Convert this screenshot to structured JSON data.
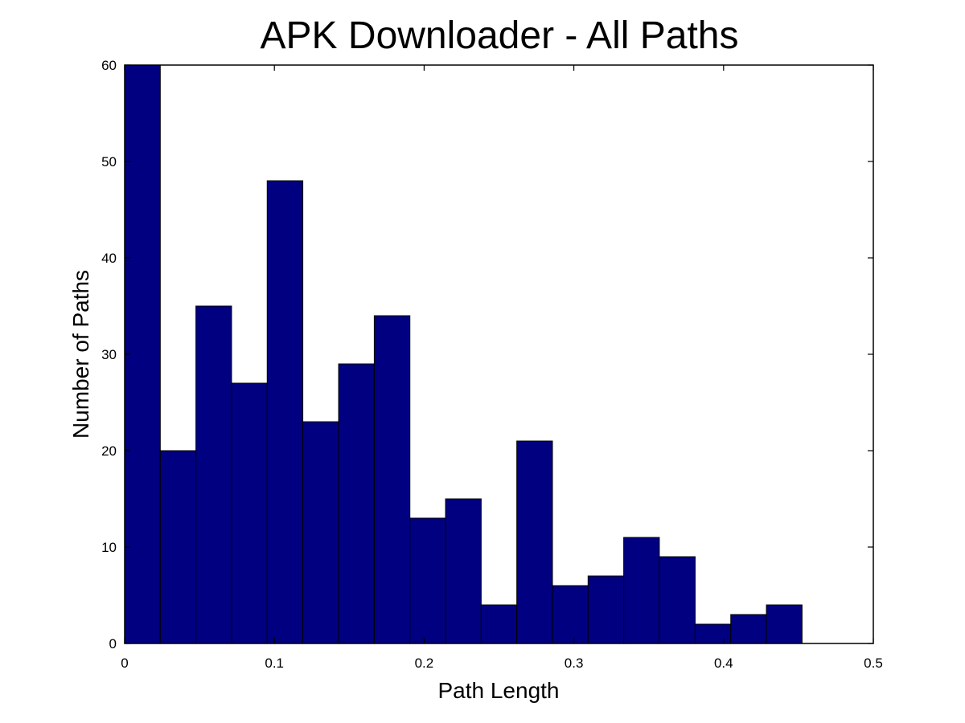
{
  "chart_data": {
    "type": "bar",
    "title": "APK Downloader - All Paths",
    "xlabel": "Path Length",
    "ylabel": "Number of Paths",
    "xlim": [
      0,
      0.5
    ],
    "ylim": [
      0,
      60
    ],
    "xticks": [
      0,
      0.1,
      0.2,
      0.3,
      0.4,
      0.5
    ],
    "xtick_labels": [
      "0",
      "0.1",
      "0.2",
      "0.3",
      "0.4",
      "0.5"
    ],
    "yticks": [
      0,
      10,
      20,
      30,
      40,
      50,
      60
    ],
    "ytick_labels": [
      "0",
      "10",
      "20",
      "30",
      "40",
      "50",
      "60"
    ],
    "bin_edges": [
      0,
      0.0238,
      0.0476,
      0.0714,
      0.0952,
      0.119,
      0.1429,
      0.1667,
      0.1905,
      0.2143,
      0.2381,
      0.2619,
      0.2857,
      0.3095,
      0.3333,
      0.3571,
      0.381,
      0.4048,
      0.4286,
      0.4524
    ],
    "values": [
      60,
      20,
      35,
      27,
      48,
      23,
      29,
      34,
      13,
      15,
      4,
      21,
      6,
      7,
      11,
      9,
      2,
      3,
      4
    ],
    "bar_color": "#000080",
    "grid": false,
    "legend": "none"
  }
}
